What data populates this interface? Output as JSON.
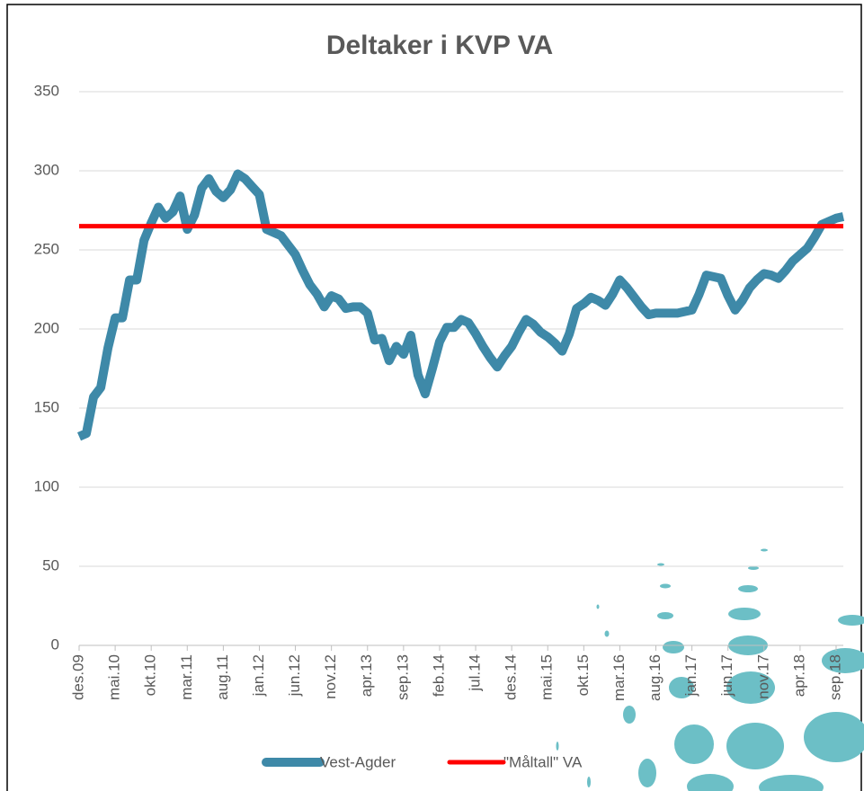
{
  "chart_data": {
    "type": "line",
    "title": "Deltaker i KVP VA",
    "categories": [
      "des.09",
      null,
      null,
      null,
      null,
      "mai.10",
      null,
      null,
      null,
      null,
      "okt.10",
      null,
      null,
      null,
      null,
      "mar.11",
      null,
      null,
      null,
      null,
      "aug.11",
      null,
      null,
      null,
      null,
      "jan.12",
      null,
      null,
      null,
      null,
      "jun.12",
      null,
      null,
      null,
      null,
      "nov.12",
      null,
      null,
      null,
      null,
      "apr.13",
      null,
      null,
      null,
      null,
      "sep.13",
      null,
      null,
      null,
      null,
      "feb.14",
      null,
      null,
      null,
      null,
      "jul.14",
      null,
      null,
      null,
      null,
      "des.14",
      null,
      null,
      null,
      null,
      "mai.15",
      null,
      null,
      null,
      null,
      "okt.15",
      null,
      null,
      null,
      null,
      "mar.16",
      null,
      null,
      null,
      null,
      "aug.16",
      null,
      null,
      null,
      null,
      "jan.17",
      null,
      null,
      null,
      null,
      "jun.17",
      null,
      null,
      null,
      null,
      "nov.17",
      null,
      null,
      null,
      null,
      "apr.18",
      null,
      null,
      null,
      null,
      "sep.18",
      null
    ],
    "series": [
      {
        "name": "Vest-Agder",
        "color": "#3e89a8",
        "values": [
          132,
          134,
          157,
          163,
          188,
          207,
          207,
          231,
          231,
          256,
          267,
          277,
          270,
          274,
          284,
          263,
          272,
          289,
          295,
          287,
          283,
          288,
          298,
          295,
          290,
          285,
          263,
          261,
          259,
          253,
          247,
          237,
          228,
          222,
          214,
          221,
          219,
          213,
          214,
          214,
          210,
          193,
          194,
          180,
          189,
          184,
          196,
          171,
          159,
          175,
          192,
          201,
          201,
          206,
          204,
          197,
          189,
          182,
          176,
          183,
          189,
          198,
          206,
          203,
          198,
          195,
          191,
          186,
          197,
          213,
          216,
          220,
          218,
          215,
          222,
          231,
          226,
          220,
          214,
          209,
          210,
          210,
          210,
          210,
          211,
          212,
          222,
          234,
          233,
          232,
          221,
          212,
          218,
          226,
          231,
          235,
          234,
          232,
          237,
          243,
          247,
          251,
          258,
          266,
          268,
          270,
          271
        ]
      },
      {
        "name": "\"Måltall\" VA",
        "color": "#ff0000",
        "values": [
          265,
          265,
          265,
          265,
          265,
          265,
          265,
          265,
          265,
          265,
          265,
          265,
          265,
          265,
          265,
          265,
          265,
          265,
          265,
          265,
          265,
          265,
          265,
          265,
          265,
          265,
          265,
          265,
          265,
          265,
          265,
          265,
          265,
          265,
          265,
          265,
          265,
          265,
          265,
          265,
          265,
          265,
          265,
          265,
          265,
          265,
          265,
          265,
          265,
          265,
          265,
          265,
          265,
          265,
          265,
          265,
          265,
          265,
          265,
          265,
          265,
          265,
          265,
          265,
          265,
          265,
          265,
          265,
          265,
          265,
          265,
          265,
          265,
          265,
          265,
          265,
          265,
          265,
          265,
          265,
          265,
          265,
          265,
          265,
          265,
          265,
          265,
          265,
          265,
          265,
          265,
          265,
          265,
          265,
          265,
          265,
          265,
          265,
          265,
          265,
          265,
          265,
          265,
          265,
          265,
          265,
          265
        ]
      }
    ],
    "ylim": [
      0,
      350
    ],
    "yticks": [
      0,
      50,
      100,
      150,
      200,
      250,
      300,
      350
    ],
    "grid": true
  }
}
